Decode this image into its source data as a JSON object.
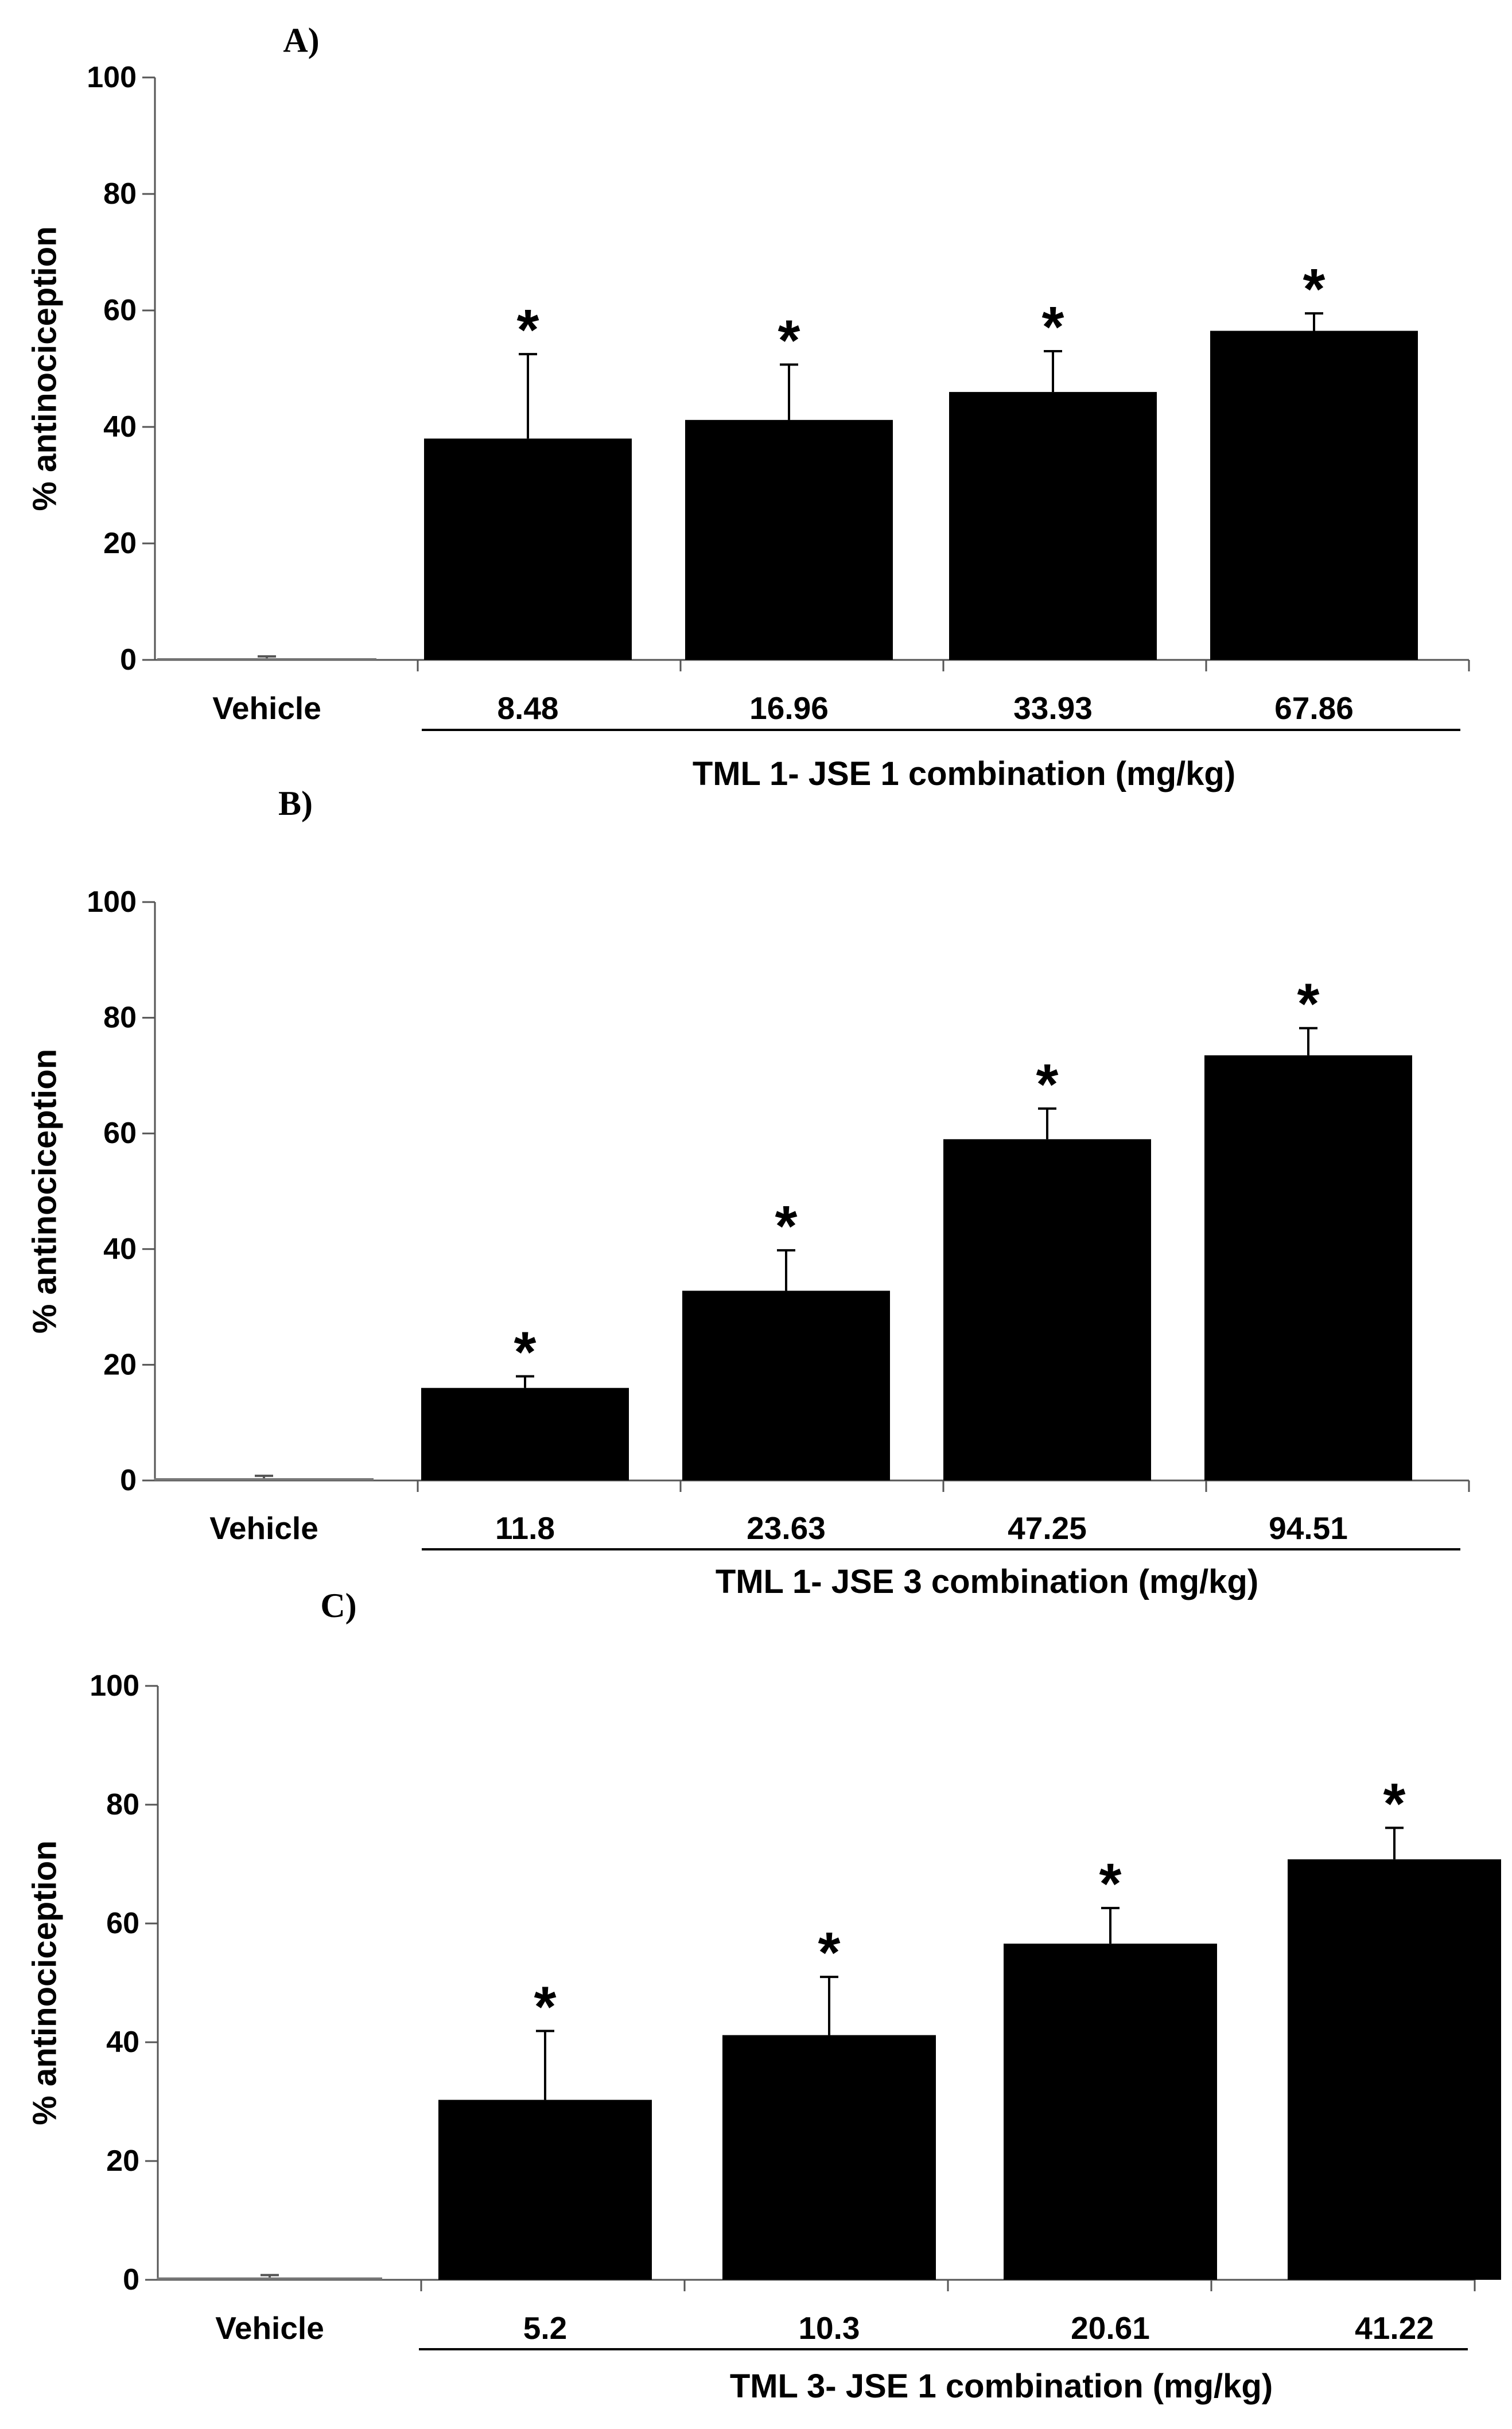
{
  "chart_data": [
    {
      "type": "bar",
      "title": "A)",
      "ylabel": "% antinociception",
      "ylim": [
        0,
        100
      ],
      "yticks": [
        "0",
        "20",
        "40",
        "60",
        "80",
        "100"
      ],
      "categories": [
        "Vehicle",
        "8.48",
        "16.96",
        "33.93",
        "67.86"
      ],
      "values": [
        0.3,
        38,
        41.2,
        46,
        56.5
      ],
      "errors": [
        0.3,
        14.5,
        9.5,
        7,
        3
      ],
      "significance": [
        "",
        "*",
        "*",
        "*",
        "*"
      ],
      "group_label": "TML 1- JSE 1 combination (mg/kg)"
    },
    {
      "type": "bar",
      "title": "B)",
      "ylabel": "% antinociception",
      "ylim": [
        0,
        100
      ],
      "yticks": [
        "0",
        "20",
        "40",
        "60",
        "80",
        "100"
      ],
      "categories": [
        "Vehicle",
        "11.8",
        "23.63",
        "47.25",
        "94.51"
      ],
      "values": [
        0.4,
        16,
        32.8,
        59,
        73.5
      ],
      "errors": [
        0.4,
        2,
        7,
        5.3,
        4.7
      ],
      "significance": [
        "",
        "*",
        "*",
        "*",
        "*"
      ],
      "group_label": "TML 1- JSE 3 combination (mg/kg)"
    },
    {
      "type": "bar",
      "title": "C)",
      "ylabel": "% antinociception",
      "ylim": [
        0,
        100
      ],
      "yticks": [
        "0",
        "20",
        "40",
        "60",
        "80",
        "100"
      ],
      "categories": [
        "Vehicle",
        "5.2",
        "10.3",
        "20.61",
        "41.22"
      ],
      "values": [
        0.4,
        30.3,
        41.2,
        56.6,
        70.8
      ],
      "errors": [
        0.4,
        11.6,
        9.8,
        6,
        5.3
      ],
      "significance": [
        "",
        "*",
        "*",
        "*",
        "*"
      ],
      "group_label": "TML 3- JSE 1 combination (mg/kg)"
    }
  ]
}
